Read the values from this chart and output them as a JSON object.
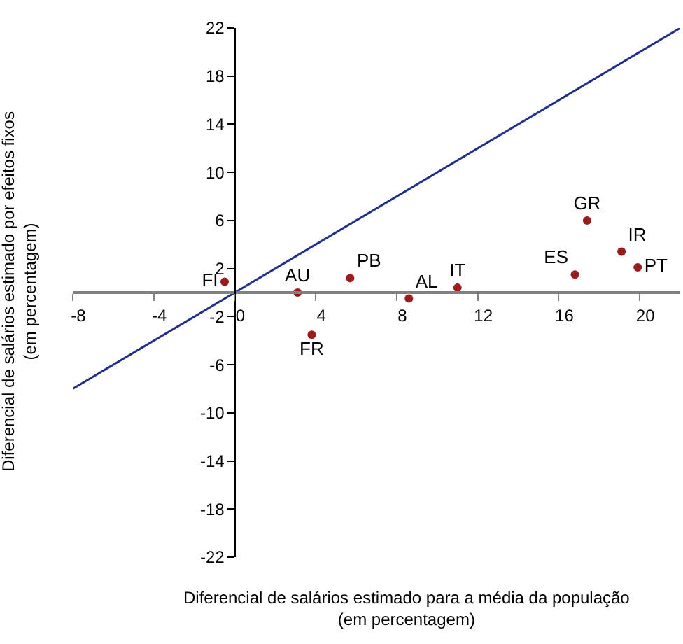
{
  "chart_data": {
    "type": "scatter",
    "xlabel": "Diferencial de salários estimado para a média da população\n(em percentagem)",
    "ylabel": "Diferencial de salários estimado por efeitos fixos\n(em percentagem)",
    "xlim": [
      -8,
      22
    ],
    "xticks": [
      -8,
      -4,
      0,
      4,
      8,
      12,
      16,
      20
    ],
    "ylim": [
      -22,
      22
    ],
    "yticks": [
      -22,
      -18,
      -14,
      -10,
      -6,
      -2,
      2,
      6,
      10,
      14,
      18,
      22
    ],
    "marker": "circle",
    "series": [
      {
        "type": "line",
        "color": "#1f2f8a",
        "x": [
          -8,
          22
        ],
        "values": [
          -8,
          22
        ],
        "marker": "none"
      },
      {
        "name": "FI",
        "color": "#9b1c1c",
        "x": [
          -0.5
        ],
        "values": [
          0.9
        ]
      },
      {
        "name": "AU",
        "color": "#9b1c1c",
        "x": [
          3.1
        ],
        "values": [
          0
        ]
      },
      {
        "name": "FR",
        "color": "#9b1c1c",
        "x": [
          3.8
        ],
        "values": [
          -3.5
        ]
      },
      {
        "name": "PB",
        "color": "#9b1c1c",
        "x": [
          5.7
        ],
        "values": [
          1.2
        ]
      },
      {
        "name": "AL",
        "color": "#9b1c1c",
        "x": [
          8.6
        ],
        "values": [
          -0.5
        ]
      },
      {
        "name": "IT",
        "color": "#9b1c1c",
        "x": [
          11
        ],
        "values": [
          0.4
        ]
      },
      {
        "name": "ES",
        "color": "#9b1c1c",
        "x": [
          16.8
        ],
        "values": [
          1.5
        ]
      },
      {
        "name": "GR",
        "color": "#9b1c1c",
        "x": [
          17.4
        ],
        "values": [
          6
        ]
      },
      {
        "name": "IR",
        "color": "#9b1c1c",
        "x": [
          19.1
        ],
        "values": [
          3.4
        ]
      },
      {
        "name": "PT",
        "color": "#9b1c1c",
        "x": [
          19.9
        ],
        "values": [
          2.1
        ]
      }
    ]
  }
}
